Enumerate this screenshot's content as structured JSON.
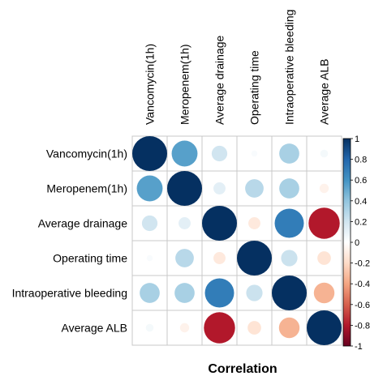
{
  "chart_data": {
    "type": "heatmap",
    "title": "Correlation",
    "variables": [
      "Vancomycin(1h)",
      "Meropenem(1h)",
      "Average drainage",
      "Operating time",
      "Intraoperative bleeding",
      "Average ALB"
    ],
    "matrix": [
      [
        1.0,
        0.55,
        0.2,
        0.03,
        0.33,
        0.05
      ],
      [
        0.55,
        1.0,
        0.12,
        0.28,
        0.33,
        -0.07
      ],
      [
        0.2,
        0.12,
        1.0,
        -0.12,
        0.7,
        -0.8
      ],
      [
        0.03,
        0.28,
        -0.12,
        1.0,
        0.22,
        -0.15
      ],
      [
        0.33,
        0.33,
        0.7,
        0.22,
        1.0,
        -0.35
      ],
      [
        0.05,
        -0.07,
        -0.8,
        -0.15,
        -0.35,
        1.0
      ]
    ],
    "colorbar": {
      "range": [
        -1,
        1
      ],
      "ticks": [
        "1",
        "0.8",
        "0.6",
        "0.4",
        "0.2",
        "0",
        "-0.2",
        "-0.4",
        "-0.6",
        "-0.8",
        "-1"
      ],
      "colors": [
        "#053061",
        "#2166ac",
        "#4393c3",
        "#92c5de",
        "#d1e5f0",
        "#ffffff",
        "#fddbc7",
        "#f4a582",
        "#d6604d",
        "#b2182b",
        "#67001f"
      ]
    },
    "method": "circle"
  }
}
